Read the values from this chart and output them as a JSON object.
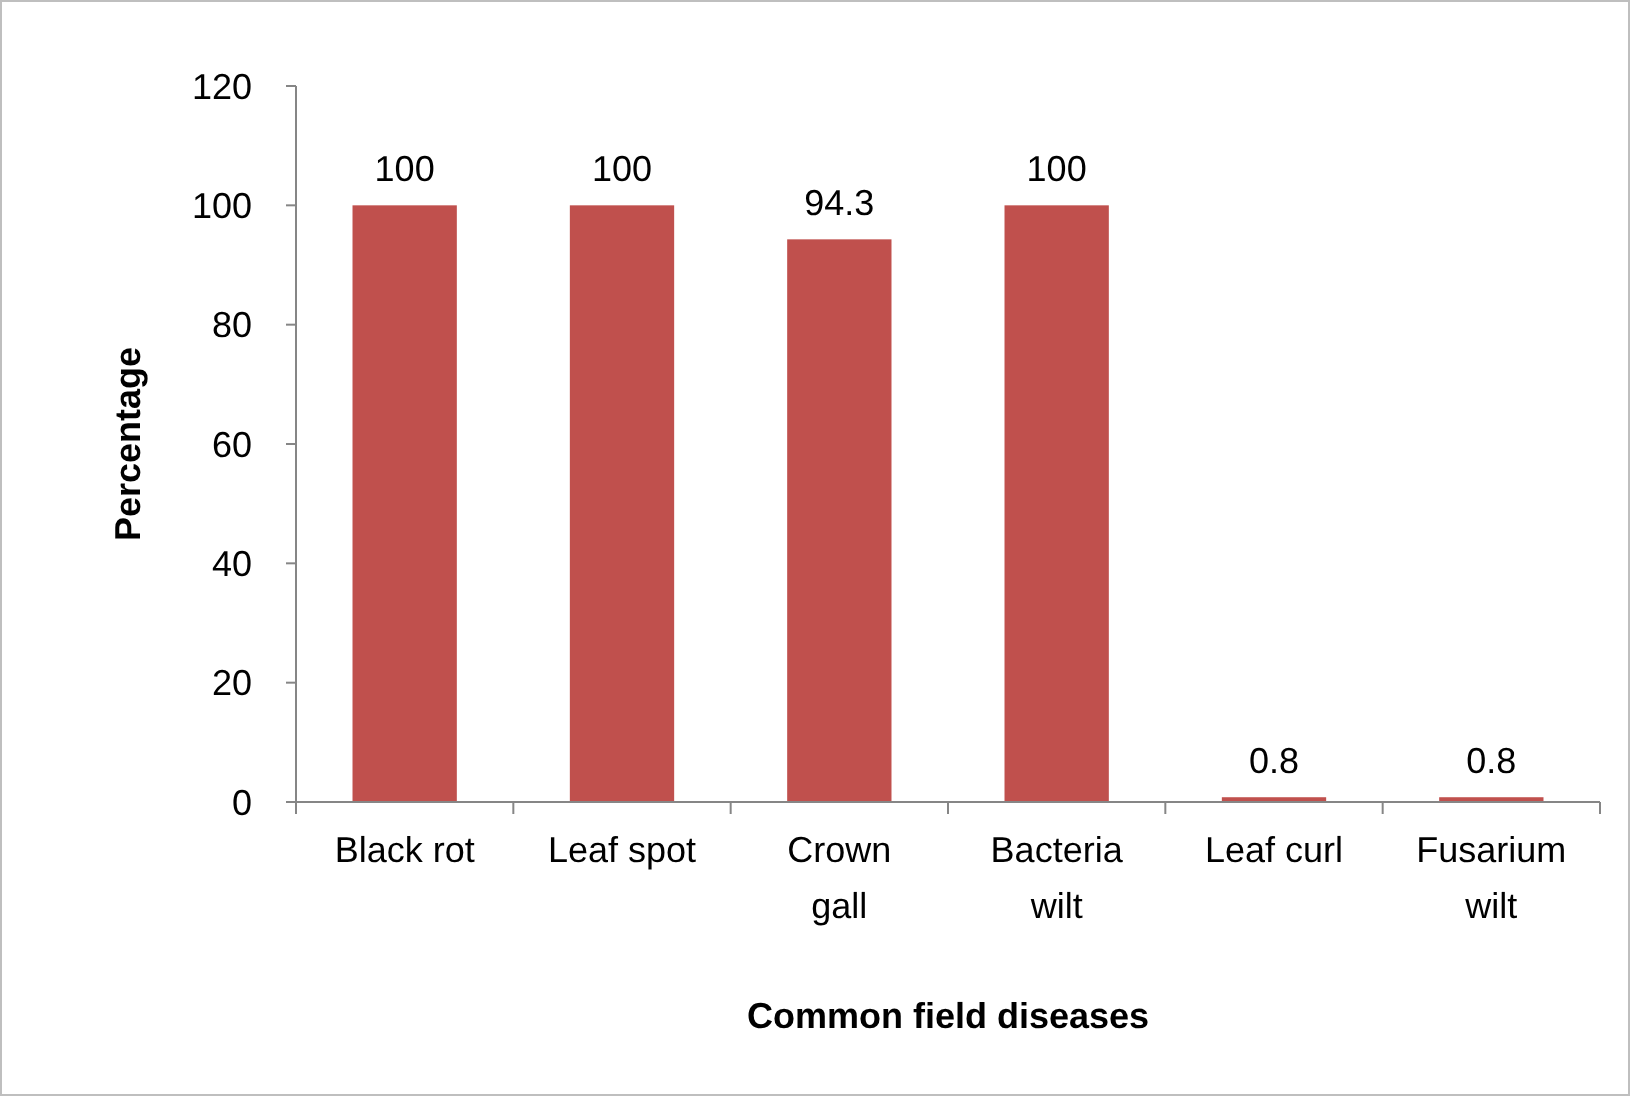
{
  "chart_data": {
    "type": "bar",
    "xlabel": "Common field diseases",
    "ylabel": "Percentage",
    "categories": [
      "Black rot",
      "Leaf spot",
      "Crown\ngall",
      "Bacteria\nwilt",
      "Leaf curl",
      "Fusarium\nwilt"
    ],
    "values": [
      100,
      100,
      94.3,
      100,
      0.8,
      0.8
    ],
    "color": "#c0504d",
    "ylim": [
      0,
      120
    ],
    "yticks": [
      0,
      20,
      40,
      60,
      80,
      100,
      120
    ],
    "grid": false,
    "data_labels": true
  }
}
